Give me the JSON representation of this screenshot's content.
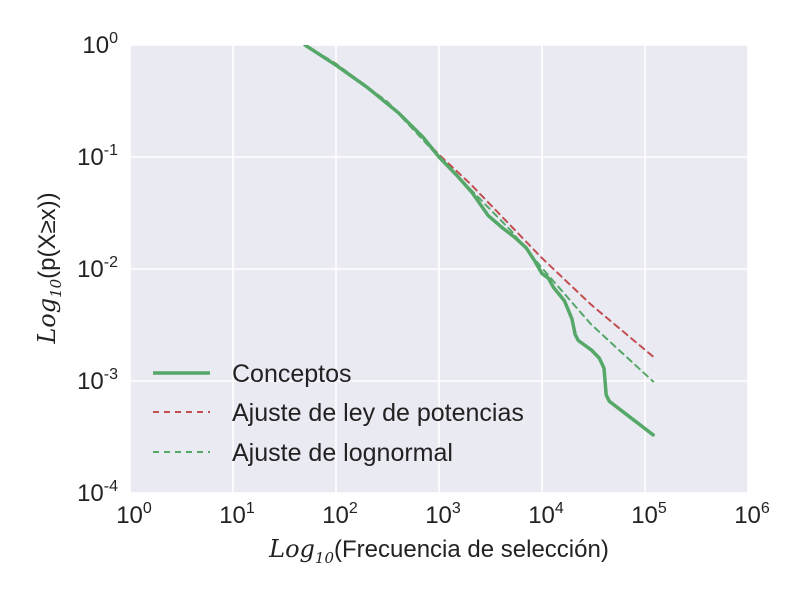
{
  "chart_data": {
    "type": "line",
    "title": "",
    "xscale": "log",
    "yscale": "log",
    "xlim": [
      1,
      1000000
    ],
    "ylim": [
      0.0001,
      1
    ],
    "grid": true,
    "legend_position": "lower-left",
    "xlabel": {
      "math_prefix": "Log",
      "math_sub": "10",
      "text": "(Frecuencia de selección)"
    },
    "ylabel": {
      "math_prefix": "Log",
      "math_sub": "10",
      "text": "(p(X≥x))"
    },
    "x_ticks": [
      {
        "base": "10",
        "exp": "0",
        "value": 1
      },
      {
        "base": "10",
        "exp": "1",
        "value": 10
      },
      {
        "base": "10",
        "exp": "2",
        "value": 100
      },
      {
        "base": "10",
        "exp": "3",
        "value": 1000
      },
      {
        "base": "10",
        "exp": "4",
        "value": 10000
      },
      {
        "base": "10",
        "exp": "5",
        "value": 100000
      },
      {
        "base": "10",
        "exp": "6",
        "value": 1000000
      }
    ],
    "y_ticks": [
      {
        "base": "10",
        "exp": "0",
        "value": 1
      },
      {
        "base": "10",
        "exp": "-1",
        "value": 0.1
      },
      {
        "base": "10",
        "exp": "-2",
        "value": 0.01
      },
      {
        "base": "10",
        "exp": "-3",
        "value": 0.001
      },
      {
        "base": "10",
        "exp": "-4",
        "value": 0.0001
      }
    ],
    "series": [
      {
        "name": "Ajuste de ley de potencias",
        "style": "dashed",
        "color": "#c44e52",
        "points": [
          [
            50,
            1.0
          ],
          [
            100,
            0.68
          ],
          [
            316,
            0.31
          ],
          [
            1000,
            0.105
          ],
          [
            2000,
            0.058
          ],
          [
            10000,
            0.0125
          ],
          [
            30000,
            0.0048
          ],
          [
            120000,
            0.00165
          ]
        ]
      },
      {
        "name": "Ajuste de lognormal",
        "style": "dashed",
        "color": "#55a868",
        "points": [
          [
            50,
            1.0
          ],
          [
            100,
            0.68
          ],
          [
            316,
            0.31
          ],
          [
            1000,
            0.1
          ],
          [
            2000,
            0.052
          ],
          [
            5000,
            0.022
          ],
          [
            10000,
            0.0102
          ],
          [
            30000,
            0.0032
          ],
          [
            120000,
            0.00099
          ]
        ]
      },
      {
        "name": "Conceptos",
        "style": "solid",
        "color": "#55a868",
        "points": [
          [
            50,
            1.0
          ],
          [
            100,
            0.66
          ],
          [
            200,
            0.42
          ],
          [
            400,
            0.25
          ],
          [
            700,
            0.15
          ],
          [
            1000,
            0.1
          ],
          [
            1500,
            0.068
          ],
          [
            2100,
            0.048
          ],
          [
            3000,
            0.03
          ],
          [
            4200,
            0.023
          ],
          [
            5500,
            0.019
          ],
          [
            7000,
            0.0155
          ],
          [
            8500,
            0.0118
          ],
          [
            10000,
            0.0091
          ],
          [
            11500,
            0.0083
          ],
          [
            13000,
            0.0068
          ],
          [
            15000,
            0.0058
          ],
          [
            16500,
            0.0052
          ],
          [
            18000,
            0.0043
          ],
          [
            19500,
            0.0036
          ],
          [
            21000,
            0.0026
          ],
          [
            22500,
            0.0023
          ],
          [
            30000,
            0.0019
          ],
          [
            36000,
            0.0016
          ],
          [
            40000,
            0.0013
          ],
          [
            42000,
            0.00075
          ],
          [
            45000,
            0.00066
          ],
          [
            120000,
            0.00033
          ]
        ]
      }
    ]
  }
}
